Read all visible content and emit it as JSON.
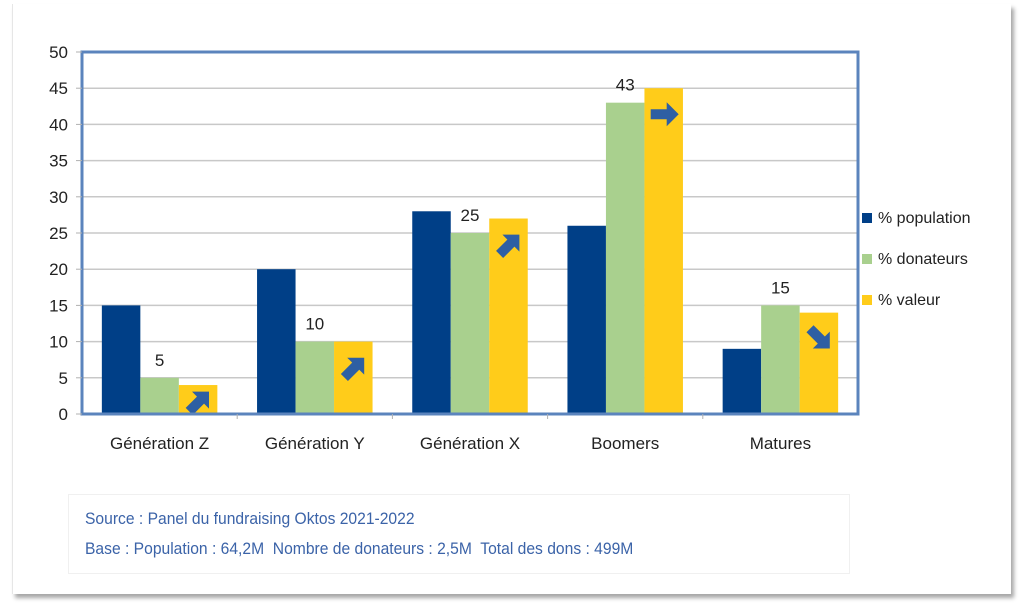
{
  "chart_data": {
    "type": "bar",
    "title": "",
    "xlabel": "",
    "ylabel": "",
    "categories": [
      "Génération Z",
      "Génération Y",
      "Génération X",
      "Boomers",
      "Matures"
    ],
    "series": [
      {
        "name": "% population",
        "color": "#003f87",
        "values": [
          15,
          20,
          28,
          26,
          9
        ]
      },
      {
        "name": "% donateurs",
        "color": "#a9d08e",
        "values": [
          5,
          10,
          25,
          43,
          15
        ]
      },
      {
        "name": "% valeur",
        "color": "#ffcc1a",
        "values": [
          4,
          10,
          27,
          45,
          14
        ]
      }
    ],
    "data_labels": [
      {
        "series": "% donateurs",
        "category": "Génération Z",
        "text": "5"
      },
      {
        "series": "% donateurs",
        "category": "Génération Y",
        "text": "10"
      },
      {
        "series": "% donateurs",
        "category": "Génération X",
        "text": "25"
      },
      {
        "series": "% donateurs",
        "category": "Boomers",
        "text": "43"
      },
      {
        "series": "% donateurs",
        "category": "Matures",
        "text": "15"
      }
    ],
    "trend_arrows": [
      {
        "category": "Génération Z",
        "series": "% valeur",
        "direction": "up-right"
      },
      {
        "category": "Génération Y",
        "series": "% valeur",
        "direction": "up-right"
      },
      {
        "category": "Génération X",
        "series": "% valeur",
        "direction": "up-right"
      },
      {
        "category": "Boomers",
        "series": "% valeur",
        "direction": "right"
      },
      {
        "category": "Matures",
        "series": "% valeur",
        "direction": "down-right"
      }
    ],
    "arrow_color": "#2e5fa3",
    "ylim": [
      0,
      50
    ],
    "yticks": [
      0,
      5,
      10,
      15,
      20,
      25,
      30,
      35,
      40,
      45,
      50
    ],
    "grid": true,
    "legend_position": "right",
    "border_color": "#5b84bd"
  },
  "footer": {
    "source": "Source : Panel du fundraising Oktos 2021-2022",
    "base": "Base : Population : 64,2M  Nombre de donateurs : 2,5M  Total des dons : 499M"
  }
}
